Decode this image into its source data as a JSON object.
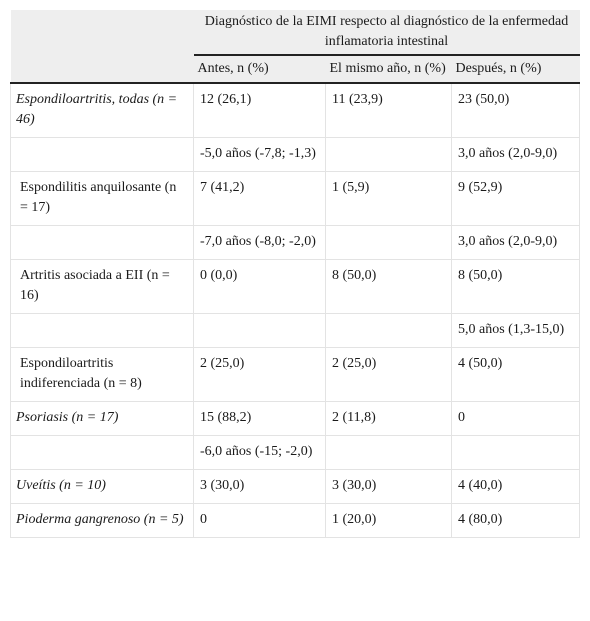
{
  "table": {
    "header": {
      "group_label": "Diagnóstico de la EIMI respecto al diagnóstico de la enfermedad inflamatoria intestinal",
      "col1": "Antes, n (%)",
      "col2": "El mismo año, n (%)",
      "col3": "Después, n (%)"
    },
    "rows": [
      {
        "label": "Espondiloartritis, todas (n = 46)",
        "c1": "12 (26,1)",
        "c2": "11 (23,9)",
        "c3": "23 (50,0)"
      },
      {
        "label": "",
        "c1": "-5,0 años (-7,8; -1,3)",
        "c2": "",
        "c3": "3,0 años (2,0-9,0)"
      },
      {
        "label": " Espondilitis anquilosante (n = 17)",
        "c1": "7 (41,2)",
        "c2": "1 (5,9)",
        "c3": "9 (52,9)"
      },
      {
        "label": "",
        "c1": "-7,0 años (-8,0; -2,0)",
        "c2": "",
        "c3": "3,0 años (2,0-9,0)"
      },
      {
        "label": " Artritis asociada a EII (n = 16)",
        "c1": "0 (0,0)",
        "c2": "8 (50,0)",
        "c3": "8 (50,0)"
      },
      {
        "label": "",
        "c1": "",
        "c2": "",
        "c3": "5,0 años (1,3-15,0)"
      },
      {
        "label": " Espondiloartritis indiferenciada (n = 8)",
        "c1": "2 (25,0)",
        "c2": "2 (25,0)",
        "c3": "4 (50,0)"
      },
      {
        "label": "Psoriasis (n = 17)",
        "c1": "15 (88,2)",
        "c2": "2 (11,8)",
        "c3": "0"
      },
      {
        "label": "",
        "c1": "-6,0 años (-15; -2,0)",
        "c2": "",
        "c3": ""
      },
      {
        "label": "Uveítis (n = 10)",
        "c1": "3 (30,0)",
        "c2": "3 (30,0)",
        "c3": "4 (40,0)"
      },
      {
        "label": "Pioderma gangrenoso (n = 5)",
        "c1": "0",
        "c2": "1 (20,0)",
        "c3": "4 (80,0)"
      }
    ]
  }
}
